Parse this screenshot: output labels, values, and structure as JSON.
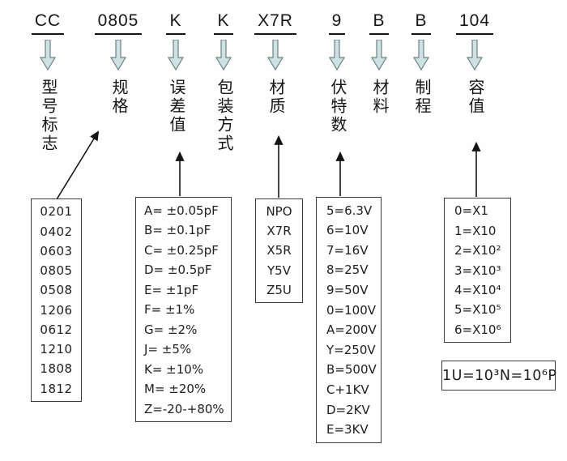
{
  "part_code_columns": [
    {
      "code": "CC",
      "label": "型号标志"
    },
    {
      "code": "0805",
      "label": "规格"
    },
    {
      "code": "K",
      "label": "误差值"
    },
    {
      "code": "K",
      "label": "包装方式"
    },
    {
      "code": "X7R",
      "label": "材质"
    },
    {
      "code": "9",
      "label": "伏特数"
    },
    {
      "code": "B",
      "label": "材料"
    },
    {
      "code": "B",
      "label": "制程"
    },
    {
      "code": "104",
      "label": "容值"
    }
  ],
  "boxes": {
    "size_codes": {
      "points_to": "规格",
      "values": [
        "0201",
        "0402",
        "0603",
        "0805",
        "0508",
        "1206",
        "0612",
        "1210",
        "1808",
        "1812"
      ]
    },
    "tolerance_codes": {
      "points_to": "误差值",
      "values": [
        "A= ±0.05pF",
        "B= ±0.1pF",
        "C= ±0.25pF",
        "D= ±0.5pF",
        "E= ±1pF",
        "F= ±1%",
        "G= ±2%",
        "J= ±5%",
        "K= ±10%",
        "M= ±20%",
        "Z=-20-+80%"
      ]
    },
    "dielectric_codes": {
      "points_to": "材质",
      "values": [
        "NPO",
        "X7R",
        "X5R",
        "Y5V",
        "Z5U"
      ]
    },
    "voltage_codes": {
      "points_to": "伏特数",
      "values": [
        "5=6.3V",
        "6=10V",
        "7=16V",
        "8=25V",
        "9=50V",
        "0=100V",
        "A=200V",
        "Y=250V",
        "B=500V",
        "C+1KV",
        "D=2KV",
        "E=3KV"
      ]
    },
    "multiplier_codes": {
      "points_to": "容值",
      "values": [
        "0=X1",
        "1=X10",
        "2=X10²",
        "3=X10³",
        "4=X10⁴",
        "5=X10⁵",
        "6=X10⁶"
      ]
    },
    "unit_note": {
      "text": "1U=10³N=10⁶P"
    }
  },
  "colors": {
    "down_arrow_fill": "#cfe2e3",
    "down_arrow_outline": "#6d7f85",
    "connector_line": "#151515",
    "text": "#161616",
    "background": "#fefefe"
  }
}
